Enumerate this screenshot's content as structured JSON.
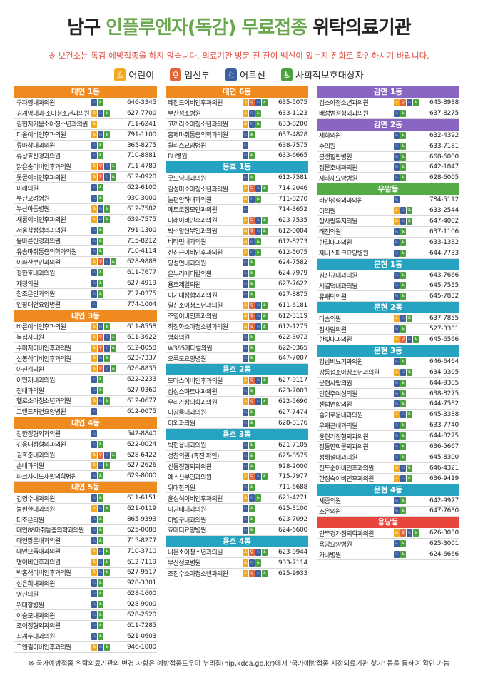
{
  "title": {
    "prefix": "남구 ",
    "highlight": "인플루엔자(독감) 무료접종",
    "suffix": " 위탁의료기관"
  },
  "notice": "※ 보건소는 독감 예방접종을 하지 않습니다. 의료기관 방문 전 잔여 백신이 있는지 전화로 확인하시기 바랍니다.",
  "legend": [
    {
      "icon": "child-icon",
      "glyph": "♙",
      "color": "#f0a920",
      "label": "어린이"
    },
    {
      "icon": "pregnant-icon",
      "glyph": "♀",
      "color": "#e2663a",
      "label": "임신부"
    },
    {
      "icon": "senior-icon",
      "glyph": "♘",
      "color": "#3d5f9e",
      "label": "어르신"
    },
    {
      "icon": "wheelchair-icon",
      "glyph": "♿",
      "color": "#4aa23f",
      "label": "사회적보호대상자"
    }
  ],
  "footer": "※ 국가예방접종 위탁의료기관의 변경 사항은 예방접종도우미 누리집(nip.kdca.go.kr)에서 '국가예방접종 지정의료기관 찾기' 등을 통하여 확인 가능",
  "columns": [
    [
      {
        "name": "대연 1동",
        "color": "orange",
        "rows": [
          [
            "구자영내과의원",
            "s w",
            "646-3345"
          ],
          [
            "김계영내과·소아청소년과의원",
            "c s w",
            "627-7700"
          ],
          [
            "김현지키움소아청소년과의원",
            "c",
            "711-6241"
          ],
          [
            "디올이비인후과의원",
            "c s w",
            "791-1100"
          ],
          [
            "류마참내과의원",
            "s w",
            "365-8275"
          ],
          [
            "류상효신경과의원",
            "s w",
            "710-8881"
          ],
          [
            "맑은숨이비인후과의원",
            "c p s w",
            "711-4789"
          ],
          [
            "못골이비인후과의원",
            "c p s w",
            "612-0920"
          ],
          [
            "미래의원",
            "s w",
            "622-6100"
          ],
          [
            "부산고려병원",
            "s w",
            "930-3000"
          ],
          [
            "부산아동병원",
            "c s w",
            "612-7582"
          ],
          [
            "새롬이비인후과의원",
            "c s w",
            "639-7575"
          ],
          [
            "서울참정형외과의원",
            "s w",
            "791-1300"
          ],
          [
            "올바른신경과의원",
            "s w",
            "715-8212"
          ],
          [
            "유솜마취통증의학과의원",
            "s w",
            "710-4114"
          ],
          [
            "이화산부인과의원",
            "c p s w",
            "628-9888"
          ],
          [
            "정한호내과의원",
            "s w",
            "611-7677"
          ],
          [
            "제정의원",
            "s w",
            "627-4919"
          ],
          [
            "참조은안과의원",
            "s w",
            "717-0375"
          ],
          [
            "인창대연요양병원",
            "s",
            "774-1004"
          ]
        ]
      },
      {
        "name": "대연 3동",
        "color": "orange",
        "rows": [
          [
            "바른이비인후과의원",
            "c s w",
            "611-8558"
          ],
          [
            "복십자의원",
            "c p s w",
            "611-3622"
          ],
          [
            "수미지이비인후과의원",
            "c p s w",
            "612-8058"
          ],
          [
            "신봉식이비인후과의원",
            "c s w",
            "623-7337"
          ],
          [
            "아신김의원",
            "c p s w",
            "626-8835"
          ],
          [
            "이민재내과의원",
            "s w",
            "622-2233"
          ],
          [
            "진내과의원",
            "s w",
            "627-0360"
          ],
          [
            "헬로소아청소년과의원",
            "c s w",
            "612-0677"
          ],
          [
            "그랜드자연요양병원",
            "s",
            "612-0075"
          ]
        ]
      },
      {
        "name": "대연 4동",
        "color": "orange",
        "rows": [
          [
            "강한정형외과의원",
            "s",
            "542-8840"
          ],
          [
            "김용대정형외과의원",
            "s w",
            "622-0024"
          ],
          [
            "김효준내과의원",
            "c p s w",
            "628-6422"
          ],
          [
            "손내과의원",
            "c s w",
            "627-2626"
          ],
          [
            "파크사이드재활의학병원",
            "s w",
            "629-8000"
          ]
        ]
      },
      {
        "name": "대연 5동",
        "color": "orange",
        "rows": [
          [
            "김영수내과의원",
            "s w",
            "611-6151"
          ],
          [
            "늘편한내과의원",
            "c s w",
            "621-0119"
          ],
          [
            "더조은의원",
            "s w",
            "865-9393"
          ],
          [
            "대연88마취통증의학과의원",
            "s w",
            "625-0088"
          ],
          [
            "대연맑은내과의원",
            "s w",
            "715-8277"
          ],
          [
            "대연으뜸내과의원",
            "c s w",
            "710-3710"
          ],
          [
            "명이비인후과의원",
            "c s w",
            "612-7119"
          ],
          [
            "박홍석이비인후과의원",
            "c s w",
            "627-9517"
          ],
          [
            "심은희내과의원",
            "s w",
            "928-3301"
          ],
          [
            "영진의원",
            "s w",
            "628-1600"
          ],
          [
            "위대항병원",
            "s w",
            "928-9000"
          ],
          [
            "이승모내과의원",
            "s w",
            "628-2520"
          ],
          [
            "조이정형외과의원",
            "s w",
            "611-7285"
          ],
          [
            "최계두내과의원",
            "s w",
            "621-0603"
          ],
          [
            "코앤필이비인후과의원",
            "c s w",
            "946-1000"
          ]
        ]
      }
    ],
    [
      {
        "name": "대연 6동",
        "color": "orange",
        "rows": [
          [
            "레전드이비인후과의원",
            "c p s w",
            "635-5075"
          ],
          [
            "부산성소병원",
            "c s w",
            "633-1123"
          ],
          [
            "고끼리소아청소년과의원",
            "c s w",
            "633-8200"
          ],
          [
            "홍제마취통증의학과의원",
            "s w",
            "637-4828"
          ],
          [
            "윌리스요양병원",
            "s",
            "638-7575"
          ],
          [
            "BH병원",
            "s w",
            "633-6665"
          ]
        ]
      },
      {
        "name": "용호 1동",
        "color": "teal",
        "rows": [
          [
            "굿모닝내과의원",
            "s w",
            "612-7581"
          ],
          [
            "김성미소아청소년과의원",
            "c p s w",
            "714-2046"
          ],
          [
            "늘편안하내과의원",
            "c s w",
            "711-8270"
          ],
          [
            "메트로정모안과의원",
            "s",
            "714-3652"
          ],
          [
            "미래이비인후과의원",
            "c p s w",
            "623-7535"
          ],
          [
            "박소양산부인과의원",
            "c p s w",
            "612-0004"
          ],
          [
            "비타민내과의원",
            "c s w",
            "612-8273"
          ],
          [
            "신진근이비인후과의원",
            "c s w",
            "612-5075"
          ],
          [
            "양성연내과의원",
            "s w",
            "624-7582"
          ],
          [
            "온누리메디칼의원",
            "s w",
            "624-7979"
          ],
          [
            "용호제일의원",
            "s w",
            "627-7622"
          ],
          [
            "이기대정형외과의원",
            "s w",
            "627-8875"
          ],
          [
            "일신소아청소년과의원",
            "c p s w",
            "611-6181"
          ],
          [
            "조영이비인후과의원",
            "c p s w",
            "612-3119"
          ],
          [
            "최정화소아청소년과의원",
            "c p s w",
            "612-1275"
          ],
          [
            "평화의원",
            "s w",
            "622-3072"
          ],
          [
            "W365메디컬의원",
            "s w",
            "622-0365"
          ],
          [
            "오륙도요양병원",
            "s w",
            "647-7007"
          ]
        ]
      },
      {
        "name": "용호 2동",
        "color": "teal",
        "rows": [
          [
            "도마스이비인후과의원",
            "c p s w",
            "627-9117"
          ],
          [
            "삼성스마트내과의원",
            "s w",
            "623-7003"
          ],
          [
            "우리가정의학과의원",
            "c p s w",
            "622-5690"
          ],
          [
            "이강룡내과의원",
            "s w",
            "627-7474"
          ],
          [
            "이외과의원",
            "s w",
            "628-8176"
          ]
        ]
      },
      {
        "name": "용호 3동",
        "color": "teal",
        "rows": [
          [
            "박현용내과의원",
            "s w",
            "621-7105"
          ],
          [
            "성찬의원 (휴진 확인)",
            "s w",
            "625-8575"
          ],
          [
            "신동정형외과의원",
            "s w",
            "928-2000"
          ],
          [
            "에스산부인과의원",
            "c p s w",
            "715-7977"
          ],
          [
            "위대한의원",
            "s w",
            "711-6688"
          ],
          [
            "윤성식이비인후과의원",
            "c s w",
            "621-4271"
          ],
          [
            "이균태내과의원",
            "s w",
            "625-3100"
          ],
          [
            "이병구내과의원",
            "s w",
            "623-7092"
          ],
          [
            "효메디요양병원",
            "s w",
            "624-6600"
          ]
        ]
      },
      {
        "name": "용호 4동",
        "color": "teal",
        "rows": [
          [
            "나은소아청소년과의원",
            "c p s w",
            "623-9944"
          ],
          [
            "부산성모병원",
            "c s w",
            "933-7114"
          ],
          [
            "조진수소아청소년과의원",
            "c p s w",
            "625-9933"
          ]
        ]
      }
    ],
    [
      {
        "name": "감만 1동",
        "color": "purple",
        "rows": [
          [
            "김소아청소년과의원",
            "c p s w",
            "645-8988"
          ],
          [
            "배성범정형외과의원",
            "s w",
            "637-8275"
          ]
        ]
      },
      {
        "name": "감만 2동",
        "color": "purple",
        "rows": [
          [
            "세화의원",
            "s w",
            "632-4392"
          ],
          [
            "수의원",
            "s w",
            "633-7181"
          ],
          [
            "봉생힐링병원",
            "s w",
            "668-6000"
          ],
          [
            "정문호내과의원",
            "s w",
            "642-1847"
          ],
          [
            "새라새요양병원",
            "s w",
            "628-6005"
          ]
        ]
      },
      {
        "name": "우암동",
        "color": "green",
        "rows": [
          [
            "라인정형외과의원",
            "s",
            "784-5112"
          ],
          [
            "이의원",
            "c s w",
            "633-2544"
          ],
          [
            "참사랑복지의원",
            "c s w",
            "647-4002"
          ],
          [
            "태진의원",
            "s w",
            "637-1106"
          ],
          [
            "한길내과의원",
            "s w",
            "633-1332"
          ],
          [
            "제니스파크요양병원",
            "s w",
            "644-7733"
          ]
        ]
      },
      {
        "name": "문현 1동",
        "color": "teal",
        "rows": [
          [
            "김진규내과의원",
            "s w",
            "643-7666"
          ],
          [
            "서열덕내과의원",
            "s w",
            "645-7555"
          ],
          [
            "유재덕의원",
            "s w",
            "645-7832"
          ]
        ]
      },
      {
        "name": "문현 2동",
        "color": "teal",
        "rows": [
          [
            "다솜의원",
            "c s w",
            "637-7855"
          ],
          [
            "참사랑의원",
            "s w",
            "527-3331"
          ],
          [
            "한빛내과의원",
            "c p s w",
            "645-6566"
          ]
        ]
      },
      {
        "name": "문현 3동",
        "color": "teal",
        "rows": [
          [
            "강남비뇨기과의원",
            "s w",
            "646-6464"
          ],
          [
            "강동섭소아청소년과의원",
            "c s w",
            "634-9305"
          ],
          [
            "문현사랑의원",
            "s w",
            "644-9305"
          ],
          [
            "민현주여성의원",
            "s w",
            "638-8275"
          ],
          [
            "센텀연합의원",
            "s w",
            "644-7582"
          ],
          [
            "슬기로운내과의원",
            "c s w",
            "645-3388"
          ],
          [
            "우재곤내과의원",
            "s w",
            "633-7740"
          ],
          [
            "윤현기정형외과의원",
            "s w",
            "644-8275"
          ],
          [
            "장동한학문외과의원",
            "s w",
            "636-5667"
          ],
          [
            "정해철내과의원",
            "s w",
            "645-8300"
          ],
          [
            "진도순이비인후과의원",
            "c s w",
            "646-4321"
          ],
          [
            "한정숙이비인후과의원",
            "c s w",
            "636-9419"
          ]
        ]
      },
      {
        "name": "문현 4동",
        "color": "teal",
        "rows": [
          [
            "세종의원",
            "s w",
            "642-9977"
          ],
          [
            "조은의원",
            "s w",
            "647-7630"
          ]
        ]
      },
      {
        "name": "용당동",
        "color": "red",
        "rows": [
          [
            "안무경가정의학과의원",
            "c p s w",
            "626-3030"
          ],
          [
            "용당요양병원",
            "s w",
            "625-3001"
          ],
          [
            "가나병원",
            "s w",
            "624-6666"
          ]
        ]
      }
    ]
  ]
}
